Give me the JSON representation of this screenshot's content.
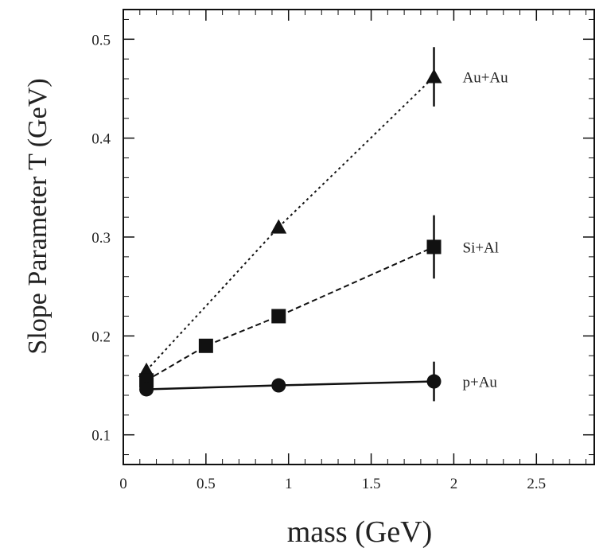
{
  "chart_data": {
    "type": "scatter",
    "title": "",
    "xlabel": "mass (GeV)",
    "ylabel": "Slope Parameter T (GeV)",
    "xlim": [
      0,
      2.85
    ],
    "ylim": [
      0.07,
      0.53
    ],
    "x_ticks": [
      "0",
      "0.5",
      "1",
      "1.5",
      "2",
      "2.5"
    ],
    "y_ticks": [
      "0.1",
      "0.2",
      "0.3",
      "0.4",
      "0.5"
    ],
    "grid": false,
    "legend": "none",
    "series": [
      {
        "name": "Au+Au",
        "marker": "triangle",
        "line": "dotted",
        "points": [
          {
            "x": 0.14,
            "y": 0.165,
            "yerr": 0
          },
          {
            "x": 0.94,
            "y": 0.31,
            "yerr": 0
          },
          {
            "x": 1.88,
            "y": 0.462,
            "yerr": 0.03
          }
        ]
      },
      {
        "name": "Si+Al",
        "marker": "square",
        "line": "dashed",
        "points": [
          {
            "x": 0.14,
            "y": 0.155,
            "yerr": 0
          },
          {
            "x": 0.5,
            "y": 0.19,
            "yerr": 0
          },
          {
            "x": 0.94,
            "y": 0.22,
            "yerr": 0
          },
          {
            "x": 1.88,
            "y": 0.29,
            "yerr": 0.032
          }
        ]
      },
      {
        "name": "p+Au",
        "marker": "circle",
        "line": "solid",
        "points": [
          {
            "x": 0.14,
            "y": 0.146,
            "yerr": 0
          },
          {
            "x": 0.94,
            "y": 0.15,
            "yerr": 0
          },
          {
            "x": 1.88,
            "y": 0.154,
            "yerr": 0.02
          }
        ]
      }
    ]
  }
}
